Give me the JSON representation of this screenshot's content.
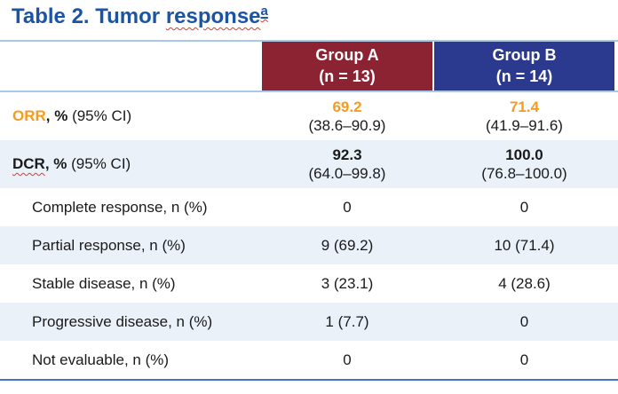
{
  "title": {
    "prefix": "Table 2. Tumor ",
    "highlight": "response",
    "footnote_marker": "a"
  },
  "table": {
    "columns": [
      {
        "name": "Group A",
        "n": "(n = 13)"
      },
      {
        "name": "Group B",
        "n": "(n = 14)"
      }
    ],
    "rows": [
      {
        "label_em": "ORR",
        "label_bold": ", %",
        "label_rest": " (95% CI)",
        "groupA": {
          "line1": "69.2",
          "line2": "(38.6–90.9)"
        },
        "groupB": {
          "line1": "71.4",
          "line2": "(41.9–91.6)"
        }
      },
      {
        "label_em": "DCR",
        "label_bold": ", %",
        "label_rest": " (95% CI)",
        "groupA": {
          "line1": "92.3",
          "line2": "(64.0–99.8)"
        },
        "groupB": {
          "line1": "100.0",
          "line2": "(76.8–100.0)"
        }
      },
      {
        "label": "Complete response, n (%)",
        "groupA": {
          "line1": "0"
        },
        "groupB": {
          "line1": "0"
        }
      },
      {
        "label": "Partial response, n (%)",
        "groupA": {
          "line1": "9 (69.2)"
        },
        "groupB": {
          "line1": "10 (71.4)"
        }
      },
      {
        "label": "Stable disease, n (%)",
        "groupA": {
          "line1": "3 (23.1)"
        },
        "groupB": {
          "line1": "4 (28.6)"
        }
      },
      {
        "label": "Progressive disease, n (%)",
        "groupA": {
          "line1": "1 (7.7)"
        },
        "groupB": {
          "line1": "0"
        }
      },
      {
        "label": "Not evaluable, n (%)",
        "groupA": {
          "line1": "0"
        },
        "groupB": {
          "line1": "0"
        }
      }
    ]
  },
  "colors": {
    "title_blue": "#1b54a5",
    "group_a_bg": "#8c2332",
    "group_b_bg": "#2b3a8f",
    "accent_orange": "#f59b22",
    "row_alt_bg": "#eaf1f8",
    "rule_light_blue": "#a9c7e8",
    "rule_bottom_blue": "#4472c4",
    "squiggle_red": "#e03a2f"
  },
  "chart_data": {
    "type": "table",
    "title": "Table 2. Tumor response",
    "columns": [
      "",
      "Group A (n = 13)",
      "Group B (n = 14)"
    ],
    "rows": [
      [
        "ORR, % (95% CI)",
        "69.2 (38.6–90.9)",
        "71.4 (41.9–91.6)"
      ],
      [
        "DCR, % (95% CI)",
        "92.3 (64.0–99.8)",
        "100.0 (76.8–100.0)"
      ],
      [
        "Complete response, n (%)",
        "0",
        "0"
      ],
      [
        "Partial response, n (%)",
        "9 (69.2)",
        "10 (71.4)"
      ],
      [
        "Stable disease, n (%)",
        "3 (23.1)",
        "4 (28.6)"
      ],
      [
        "Progressive disease, n (%)",
        "1 (7.7)",
        "0"
      ],
      [
        "Not evaluable, n (%)",
        "0",
        "0"
      ]
    ]
  }
}
